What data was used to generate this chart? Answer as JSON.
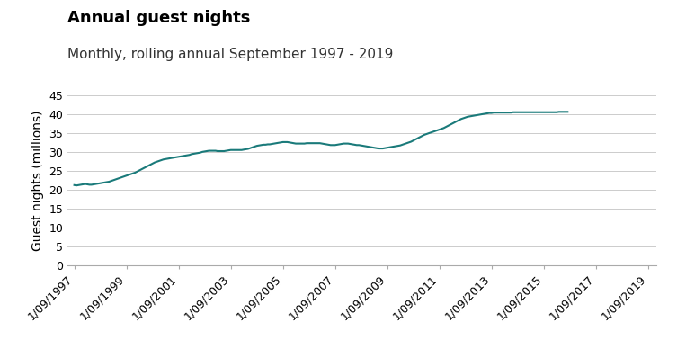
{
  "title": "Annual guest nights",
  "subtitle": "Monthly, rolling annual September 1997 - 2019",
  "ylabel": "Guest nights (millions)",
  "ylim": [
    0,
    45
  ],
  "yticks": [
    0,
    5,
    10,
    15,
    20,
    25,
    30,
    35,
    40,
    45
  ],
  "line_color": "#1a7a7a",
  "line_width": 1.5,
  "background_color": "#ffffff",
  "title_fontsize": 13,
  "subtitle_fontsize": 11,
  "ylabel_fontsize": 10,
  "tick_fontsize": 9,
  "series": [
    21.2,
    21.1,
    21.2,
    21.3,
    21.4,
    21.5,
    21.4,
    21.3,
    21.3,
    21.4,
    21.5,
    21.6,
    21.7,
    21.8,
    21.9,
    22.0,
    22.1,
    22.3,
    22.5,
    22.7,
    22.9,
    23.1,
    23.3,
    23.5,
    23.7,
    23.9,
    24.1,
    24.3,
    24.5,
    24.8,
    25.1,
    25.4,
    25.7,
    26.0,
    26.3,
    26.6,
    26.9,
    27.2,
    27.4,
    27.6,
    27.8,
    28.0,
    28.1,
    28.2,
    28.3,
    28.4,
    28.5,
    28.6,
    28.7,
    28.8,
    28.9,
    29.0,
    29.1,
    29.2,
    29.4,
    29.5,
    29.6,
    29.7,
    29.8,
    30.0,
    30.1,
    30.2,
    30.3,
    30.3,
    30.3,
    30.3,
    30.2,
    30.2,
    30.2,
    30.2,
    30.3,
    30.4,
    30.5,
    30.5,
    30.5,
    30.5,
    30.5,
    30.5,
    30.6,
    30.7,
    30.8,
    31.0,
    31.2,
    31.4,
    31.6,
    31.7,
    31.8,
    31.9,
    31.9,
    32.0,
    32.0,
    32.1,
    32.2,
    32.3,
    32.4,
    32.5,
    32.6,
    32.6,
    32.6,
    32.5,
    32.4,
    32.3,
    32.2,
    32.2,
    32.2,
    32.2,
    32.2,
    32.3,
    32.3,
    32.3,
    32.3,
    32.3,
    32.3,
    32.3,
    32.2,
    32.1,
    32.0,
    31.9,
    31.8,
    31.8,
    31.8,
    31.9,
    32.0,
    32.1,
    32.2,
    32.2,
    32.2,
    32.1,
    32.0,
    31.9,
    31.8,
    31.8,
    31.7,
    31.6,
    31.5,
    31.4,
    31.3,
    31.2,
    31.1,
    31.0,
    30.9,
    30.9,
    30.9,
    31.0,
    31.1,
    31.2,
    31.3,
    31.4,
    31.5,
    31.6,
    31.7,
    31.9,
    32.1,
    32.3,
    32.5,
    32.7,
    33.0,
    33.3,
    33.6,
    33.9,
    34.2,
    34.5,
    34.7,
    34.9,
    35.1,
    35.3,
    35.5,
    35.7,
    35.9,
    36.1,
    36.3,
    36.6,
    36.9,
    37.2,
    37.5,
    37.8,
    38.1,
    38.4,
    38.7,
    38.9,
    39.1,
    39.3,
    39.4,
    39.5,
    39.6,
    39.7,
    39.8,
    39.9,
    40.0,
    40.1,
    40.2,
    40.3,
    40.3,
    40.4,
    40.4,
    40.4,
    40.4,
    40.4,
    40.4,
    40.4,
    40.4,
    40.4,
    40.5,
    40.5,
    40.5,
    40.5,
    40.5,
    40.5,
    40.5,
    40.5,
    40.5,
    40.5,
    40.5,
    40.5,
    40.5,
    40.5,
    40.5,
    40.5,
    40.5,
    40.5,
    40.5,
    40.5,
    40.5,
    40.6,
    40.6,
    40.6,
    40.6,
    40.6
  ],
  "xtick_labels": [
    "1/09/1997",
    "1/09/1999",
    "1/09/2001",
    "1/09/2003",
    "1/09/2005",
    "1/09/2007",
    "1/09/2009",
    "1/09/2011",
    "1/09/2013",
    "1/09/2015",
    "1/09/2017",
    "1/09/2019"
  ]
}
